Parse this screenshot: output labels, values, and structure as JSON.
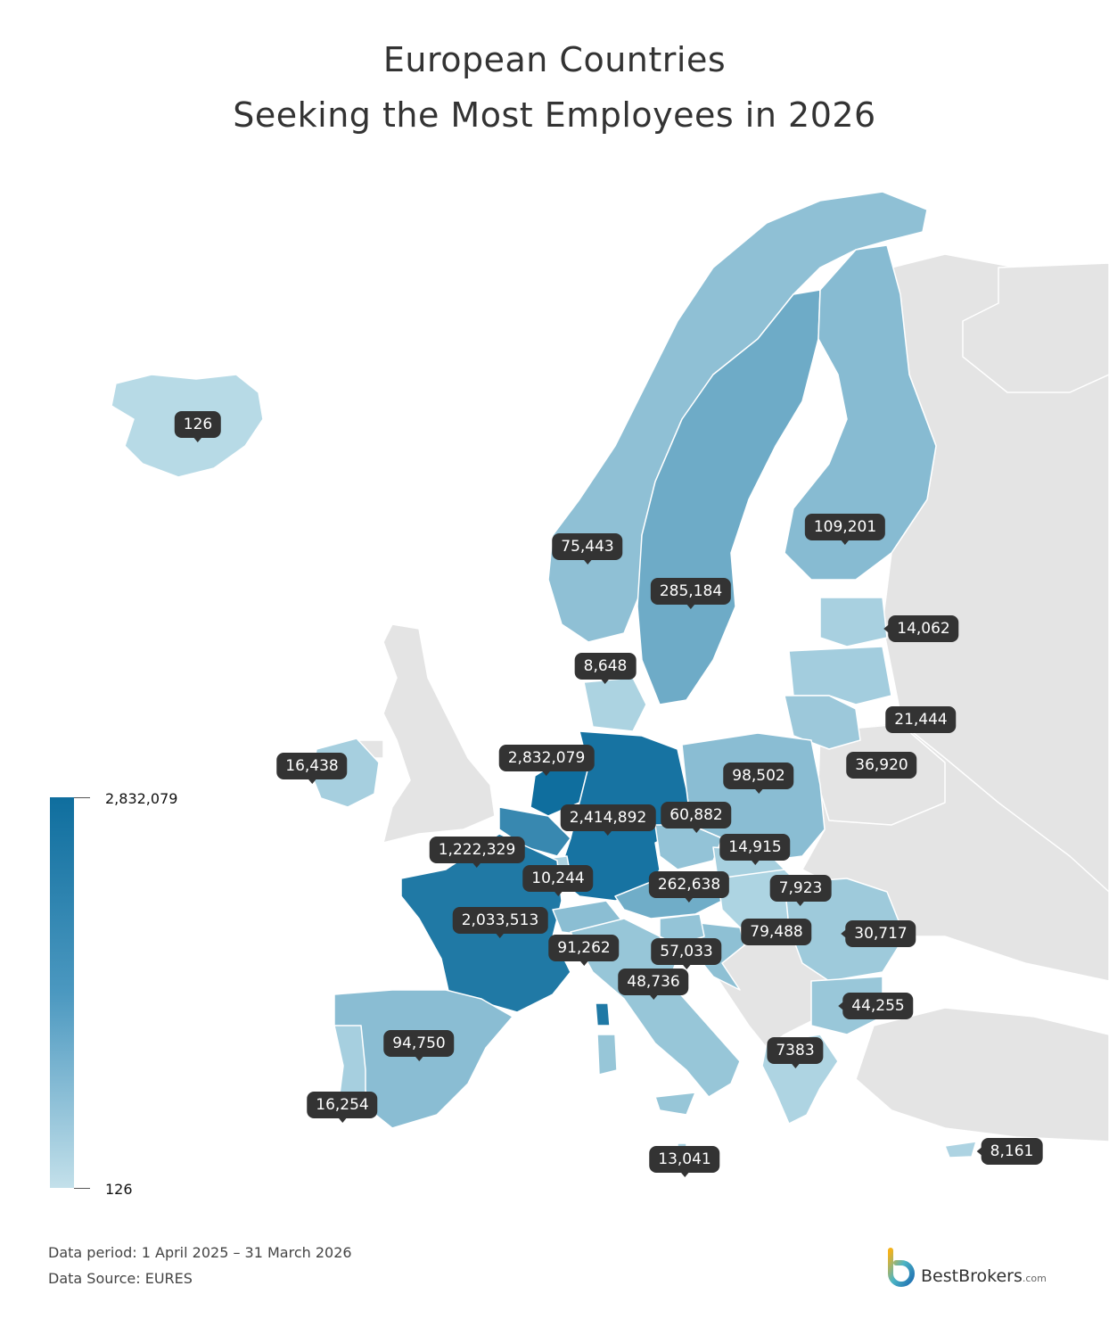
{
  "title": {
    "line1": "European Countries",
    "line2": "Seeking the Most Employees in 2026"
  },
  "colors": {
    "max": "#0f6e9e",
    "mid": "#4b98c0",
    "low": "#b7dae6",
    "no_data": "#e4e4e4",
    "callout": "#333333"
  },
  "legend": {
    "max_label": "2,832,079",
    "min_label": "126"
  },
  "map_data": {
    "type": "choropleth",
    "value_range": [
      126,
      2832079
    ],
    "regions": [
      {
        "id": "iceland",
        "value": 126,
        "label": "126"
      },
      {
        "id": "norway",
        "value": 75443,
        "label": "75,443"
      },
      {
        "id": "sweden",
        "value": 285184,
        "label": "285,184"
      },
      {
        "id": "finland",
        "value": 109201,
        "label": "109,201"
      },
      {
        "id": "estonia",
        "value": 14062,
        "label": "14,062"
      },
      {
        "id": "denmark",
        "value": 8648,
        "label": "8,648"
      },
      {
        "id": "latvia",
        "value": 21444,
        "label": "21,444"
      },
      {
        "id": "lithuania",
        "value": 36920,
        "label": "36,920"
      },
      {
        "id": "ireland",
        "value": 16438,
        "label": "16,438"
      },
      {
        "id": "netherlands",
        "value": 2832079,
        "label": "2,832,079"
      },
      {
        "id": "poland",
        "value": 98502,
        "label": "98,502"
      },
      {
        "id": "germany",
        "value": 2414892,
        "label": "2,414,892"
      },
      {
        "id": "czechia",
        "value": 60882,
        "label": "60,882"
      },
      {
        "id": "belgium",
        "value": 1222329,
        "label": "1,222,329"
      },
      {
        "id": "slovakia",
        "value": 14915,
        "label": "14,915"
      },
      {
        "id": "luxembourg",
        "value": 10244,
        "label": "10,244"
      },
      {
        "id": "austria",
        "value": 262638,
        "label": "262,638"
      },
      {
        "id": "hungary",
        "value": 7923,
        "label": "7,923"
      },
      {
        "id": "france",
        "value": 2033513,
        "label": "2,033,513"
      },
      {
        "id": "croatia",
        "value": 79488,
        "label": "79,488"
      },
      {
        "id": "romania",
        "value": 30717,
        "label": "30,717"
      },
      {
        "id": "switzerland",
        "value": 91262,
        "label": "91,262"
      },
      {
        "id": "slovenia",
        "value": 57033,
        "label": "57,033"
      },
      {
        "id": "italy",
        "value": 48736,
        "label": "48,736"
      },
      {
        "id": "bulgaria",
        "value": 44255,
        "label": "44,255"
      },
      {
        "id": "spain",
        "value": 94750,
        "label": "94,750"
      },
      {
        "id": "greece",
        "value": 7383,
        "label": "7383"
      },
      {
        "id": "portugal",
        "value": 16254,
        "label": "16,254"
      },
      {
        "id": "malta",
        "value": 13041,
        "label": "13,041"
      },
      {
        "id": "cyprus",
        "value": 8161,
        "label": "8,161"
      }
    ]
  },
  "footer": {
    "period": "Data period: 1 April 2025 – 31 March 2026",
    "source": "Data Source: EURES"
  },
  "brand": {
    "name": "BestBrokers",
    "suffix": ".com",
    "icon": "bestbrokers-b-logo"
  }
}
